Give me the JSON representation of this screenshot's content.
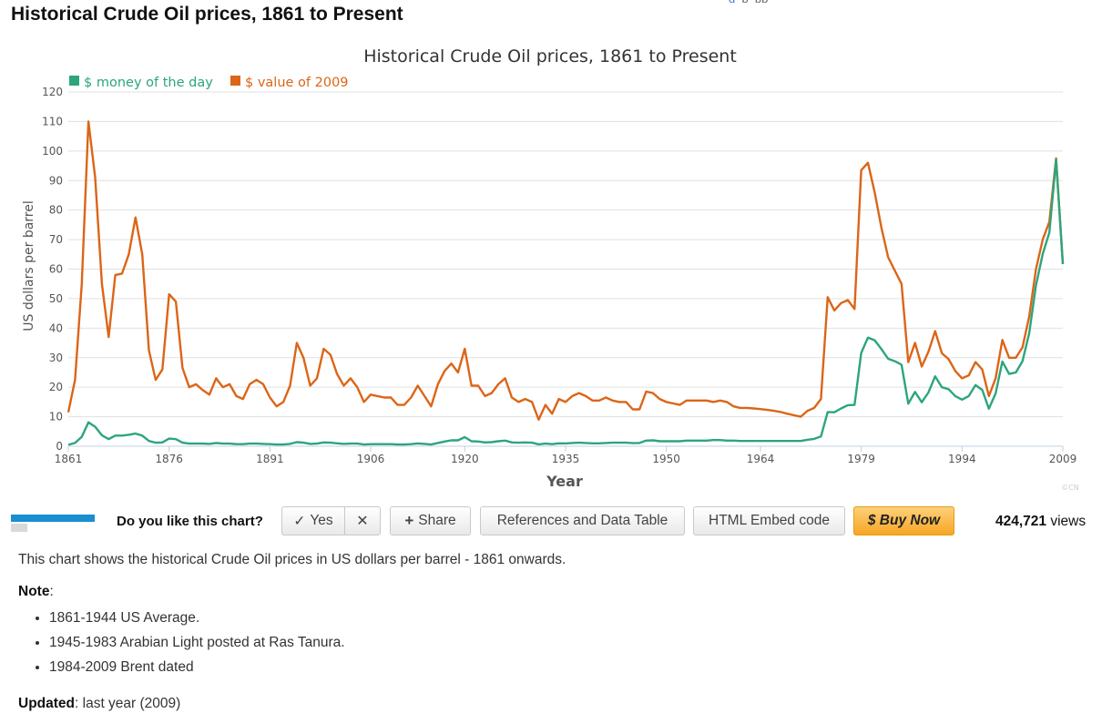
{
  "page": {
    "title": "Historical Crude Oil prices, 1861 to Present",
    "description": "This chart shows the historical Crude Oil prices in US dollars per barrel - 1861 onwards.",
    "note_label": "Note",
    "notes": [
      "1861-1944 US Average.",
      "1945-1983 Arabian Light posted at Ras Tanura.",
      "1984-2009 Brent dated"
    ],
    "updated_label": "Updated",
    "updated_value": "last year (2009)"
  },
  "toolbar": {
    "question": "Do you like this chart?",
    "yes_label": "Yes",
    "yes_icon": "✓",
    "no_label": "✕",
    "share_icon": "+",
    "share_label": "Share",
    "references_label": "References and Data Table",
    "embed_label": "HTML Embed code",
    "buy_label": "$ Buy Now",
    "views_count": "424,721",
    "views_label": "views"
  },
  "chart_data": {
    "type": "line",
    "title": "Historical Crude Oil prices, 1861 to Present",
    "xlabel": "Year",
    "ylabel": "US dollars per barrel",
    "credit": "©CN",
    "xlim": [
      1861,
      2009
    ],
    "ylim": [
      0,
      120
    ],
    "x_ticks": [
      1861,
      1876,
      1891,
      1906,
      1920,
      1935,
      1950,
      1964,
      1979,
      1994,
      2009
    ],
    "y_ticks": [
      0,
      10,
      20,
      30,
      40,
      50,
      60,
      70,
      80,
      90,
      100,
      110,
      120
    ],
    "grid": true,
    "legend": "top-left",
    "series": [
      {
        "name": "$ money of the day",
        "color": "#2ca57d",
        "points": [
          [
            1861,
            0.5
          ],
          [
            1862,
            1.1
          ],
          [
            1863,
            3.2
          ],
          [
            1864,
            8.1
          ],
          [
            1865,
            6.6
          ],
          [
            1866,
            3.7
          ],
          [
            1867,
            2.4
          ],
          [
            1868,
            3.6
          ],
          [
            1869,
            3.6
          ],
          [
            1870,
            3.9
          ],
          [
            1871,
            4.3
          ],
          [
            1872,
            3.6
          ],
          [
            1873,
            1.8
          ],
          [
            1874,
            1.2
          ],
          [
            1875,
            1.3
          ],
          [
            1876,
            2.6
          ],
          [
            1877,
            2.4
          ],
          [
            1878,
            1.2
          ],
          [
            1879,
            0.9
          ],
          [
            1880,
            0.9
          ],
          [
            1881,
            0.9
          ],
          [
            1882,
            0.8
          ],
          [
            1883,
            1.1
          ],
          [
            1884,
            0.9
          ],
          [
            1885,
            0.9
          ],
          [
            1886,
            0.7
          ],
          [
            1887,
            0.7
          ],
          [
            1888,
            0.9
          ],
          [
            1889,
            0.9
          ],
          [
            1890,
            0.8
          ],
          [
            1891,
            0.7
          ],
          [
            1892,
            0.6
          ],
          [
            1893,
            0.6
          ],
          [
            1894,
            0.8
          ],
          [
            1895,
            1.4
          ],
          [
            1896,
            1.2
          ],
          [
            1897,
            0.8
          ],
          [
            1898,
            0.9
          ],
          [
            1899,
            1.3
          ],
          [
            1900,
            1.2
          ],
          [
            1901,
            1.0
          ],
          [
            1902,
            0.8
          ],
          [
            1903,
            0.9
          ],
          [
            1904,
            0.9
          ],
          [
            1905,
            0.6
          ],
          [
            1906,
            0.7
          ],
          [
            1907,
            0.7
          ],
          [
            1908,
            0.7
          ],
          [
            1909,
            0.7
          ],
          [
            1910,
            0.6
          ],
          [
            1911,
            0.6
          ],
          [
            1912,
            0.7
          ],
          [
            1913,
            0.95
          ],
          [
            1914,
            0.8
          ],
          [
            1915,
            0.6
          ],
          [
            1916,
            1.1
          ],
          [
            1917,
            1.6
          ],
          [
            1918,
            2.0
          ],
          [
            1919,
            2.0
          ],
          [
            1920,
            3.1
          ],
          [
            1921,
            1.7
          ],
          [
            1922,
            1.6
          ],
          [
            1923,
            1.3
          ],
          [
            1924,
            1.4
          ],
          [
            1925,
            1.7
          ],
          [
            1926,
            1.9
          ],
          [
            1927,
            1.3
          ],
          [
            1928,
            1.2
          ],
          [
            1929,
            1.3
          ],
          [
            1930,
            1.2
          ],
          [
            1931,
            0.65
          ],
          [
            1932,
            0.9
          ],
          [
            1933,
            0.7
          ],
          [
            1934,
            1.0
          ],
          [
            1935,
            0.97
          ],
          [
            1936,
            1.1
          ],
          [
            1937,
            1.2
          ],
          [
            1938,
            1.1
          ],
          [
            1939,
            1.0
          ],
          [
            1940,
            1.0
          ],
          [
            1941,
            1.1
          ],
          [
            1942,
            1.2
          ],
          [
            1943,
            1.2
          ],
          [
            1944,
            1.2
          ],
          [
            1945,
            1.05
          ],
          [
            1946,
            1.1
          ],
          [
            1947,
            1.9
          ],
          [
            1948,
            2.0
          ],
          [
            1949,
            1.7
          ],
          [
            1950,
            1.7
          ],
          [
            1951,
            1.7
          ],
          [
            1952,
            1.7
          ],
          [
            1953,
            1.9
          ],
          [
            1954,
            1.9
          ],
          [
            1955,
            1.9
          ],
          [
            1956,
            1.9
          ],
          [
            1957,
            2.1
          ],
          [
            1958,
            2.1
          ],
          [
            1959,
            1.9
          ],
          [
            1960,
            1.9
          ],
          [
            1961,
            1.8
          ],
          [
            1962,
            1.8
          ],
          [
            1963,
            1.8
          ],
          [
            1964,
            1.8
          ],
          [
            1965,
            1.8
          ],
          [
            1966,
            1.8
          ],
          [
            1967,
            1.8
          ],
          [
            1968,
            1.8
          ],
          [
            1969,
            1.8
          ],
          [
            1970,
            1.8
          ],
          [
            1971,
            2.2
          ],
          [
            1972,
            2.5
          ],
          [
            1973,
            3.3
          ],
          [
            1974,
            11.6
          ],
          [
            1975,
            11.5
          ],
          [
            1976,
            12.8
          ],
          [
            1977,
            13.9
          ],
          [
            1978,
            14.0
          ],
          [
            1979,
            31.6
          ],
          [
            1980,
            36.8
          ],
          [
            1981,
            35.9
          ],
          [
            1982,
            32.9
          ],
          [
            1983,
            29.6
          ],
          [
            1984,
            28.8
          ],
          [
            1985,
            27.6
          ],
          [
            1986,
            14.4
          ],
          [
            1987,
            18.4
          ],
          [
            1988,
            14.9
          ],
          [
            1989,
            18.2
          ],
          [
            1990,
            23.7
          ],
          [
            1991,
            20.0
          ],
          [
            1992,
            19.3
          ],
          [
            1993,
            17.0
          ],
          [
            1994,
            15.8
          ],
          [
            1995,
            17.0
          ],
          [
            1996,
            20.7
          ],
          [
            1997,
            19.1
          ],
          [
            1998,
            12.7
          ],
          [
            1999,
            17.9
          ],
          [
            2000,
            28.7
          ],
          [
            2001,
            24.5
          ],
          [
            2002,
            25.0
          ],
          [
            2003,
            28.8
          ],
          [
            2004,
            38.3
          ],
          [
            2005,
            54.5
          ],
          [
            2006,
            65.1
          ],
          [
            2007,
            72.4
          ],
          [
            2008,
            97.0
          ],
          [
            2009,
            61.7
          ]
        ]
      },
      {
        "name": "$ value of 2009",
        "color": "#dc6517",
        "points": [
          [
            1861,
            11.5
          ],
          [
            1862,
            22.5
          ],
          [
            1863,
            55
          ],
          [
            1864,
            110
          ],
          [
            1865,
            91
          ],
          [
            1866,
            55
          ],
          [
            1867,
            37
          ],
          [
            1868,
            58
          ],
          [
            1869,
            58.5
          ],
          [
            1870,
            65
          ],
          [
            1871,
            77.5
          ],
          [
            1872,
            65
          ],
          [
            1873,
            32.5
          ],
          [
            1874,
            22.5
          ],
          [
            1875,
            26
          ],
          [
            1876,
            51.5
          ],
          [
            1877,
            49
          ],
          [
            1878,
            26.5
          ],
          [
            1879,
            20
          ],
          [
            1880,
            21
          ],
          [
            1881,
            19
          ],
          [
            1882,
            17.5
          ],
          [
            1883,
            23
          ],
          [
            1884,
            20
          ],
          [
            1885,
            21
          ],
          [
            1886,
            17
          ],
          [
            1887,
            16
          ],
          [
            1888,
            21
          ],
          [
            1889,
            22.5
          ],
          [
            1890,
            21
          ],
          [
            1891,
            16.5
          ],
          [
            1892,
            13.5
          ],
          [
            1893,
            15
          ],
          [
            1894,
            20.5
          ],
          [
            1895,
            35
          ],
          [
            1896,
            30
          ],
          [
            1897,
            20.5
          ],
          [
            1898,
            23
          ],
          [
            1899,
            33
          ],
          [
            1900,
            31
          ],
          [
            1901,
            24.5
          ],
          [
            1902,
            20.5
          ],
          [
            1903,
            23
          ],
          [
            1904,
            20
          ],
          [
            1905,
            15
          ],
          [
            1906,
            17.5
          ],
          [
            1907,
            17
          ],
          [
            1908,
            16.5
          ],
          [
            1909,
            16.5
          ],
          [
            1910,
            14
          ],
          [
            1911,
            14
          ],
          [
            1912,
            16.5
          ],
          [
            1913,
            20.5
          ],
          [
            1914,
            17
          ],
          [
            1915,
            13.5
          ],
          [
            1916,
            21
          ],
          [
            1917,
            25.5
          ],
          [
            1918,
            28
          ],
          [
            1919,
            25
          ],
          [
            1920,
            33
          ],
          [
            1921,
            20.5
          ],
          [
            1922,
            20.5
          ],
          [
            1923,
            17
          ],
          [
            1924,
            18
          ],
          [
            1925,
            21
          ],
          [
            1926,
            23
          ],
          [
            1927,
            16.5
          ],
          [
            1928,
            15
          ],
          [
            1929,
            16
          ],
          [
            1930,
            15
          ],
          [
            1931,
            9
          ],
          [
            1932,
            14
          ],
          [
            1933,
            11
          ],
          [
            1934,
            16
          ],
          [
            1935,
            15
          ],
          [
            1936,
            17
          ],
          [
            1937,
            18
          ],
          [
            1938,
            17
          ],
          [
            1939,
            15.5
          ],
          [
            1940,
            15.5
          ],
          [
            1941,
            16.5
          ],
          [
            1942,
            15.5
          ],
          [
            1943,
            15
          ],
          [
            1944,
            15
          ],
          [
            1945,
            12.5
          ],
          [
            1946,
            12.5
          ],
          [
            1947,
            18.5
          ],
          [
            1948,
            18
          ],
          [
            1949,
            16
          ],
          [
            1950,
            15
          ],
          [
            1951,
            14.5
          ],
          [
            1952,
            14
          ],
          [
            1953,
            15.5
          ],
          [
            1954,
            15.5
          ],
          [
            1955,
            15.5
          ],
          [
            1956,
            15.5
          ],
          [
            1957,
            15
          ],
          [
            1958,
            15.5
          ],
          [
            1959,
            15
          ],
          [
            1960,
            13.5
          ],
          [
            1961,
            13
          ],
          [
            1962,
            13
          ],
          [
            1963,
            12.8
          ],
          [
            1964,
            12.6
          ],
          [
            1965,
            12.3
          ],
          [
            1966,
            12
          ],
          [
            1967,
            11.6
          ],
          [
            1968,
            11
          ],
          [
            1969,
            10.5
          ],
          [
            1970,
            10
          ],
          [
            1971,
            12
          ],
          [
            1972,
            13
          ],
          [
            1973,
            16
          ],
          [
            1974,
            50.5
          ],
          [
            1975,
            46
          ],
          [
            1976,
            48.5
          ],
          [
            1977,
            49.5
          ],
          [
            1978,
            46.5
          ],
          [
            1979,
            93.5
          ],
          [
            1980,
            96
          ],
          [
            1981,
            86
          ],
          [
            1982,
            74
          ],
          [
            1983,
            64
          ],
          [
            1984,
            59.5
          ],
          [
            1985,
            55
          ],
          [
            1986,
            28.5
          ],
          [
            1987,
            35
          ],
          [
            1988,
            27
          ],
          [
            1989,
            32
          ],
          [
            1990,
            39
          ],
          [
            1991,
            31.5
          ],
          [
            1992,
            29.5
          ],
          [
            1993,
            25.5
          ],
          [
            1994,
            23
          ],
          [
            1995,
            24
          ],
          [
            1996,
            28.5
          ],
          [
            1997,
            26
          ],
          [
            1998,
            17
          ],
          [
            1999,
            23
          ],
          [
            2000,
            36
          ],
          [
            2001,
            30
          ],
          [
            2002,
            30
          ],
          [
            2003,
            33.5
          ],
          [
            2004,
            44
          ],
          [
            2005,
            60
          ],
          [
            2006,
            70
          ],
          [
            2007,
            76
          ],
          [
            2008,
            97.5
          ],
          [
            2009,
            61.7
          ]
        ]
      }
    ]
  }
}
